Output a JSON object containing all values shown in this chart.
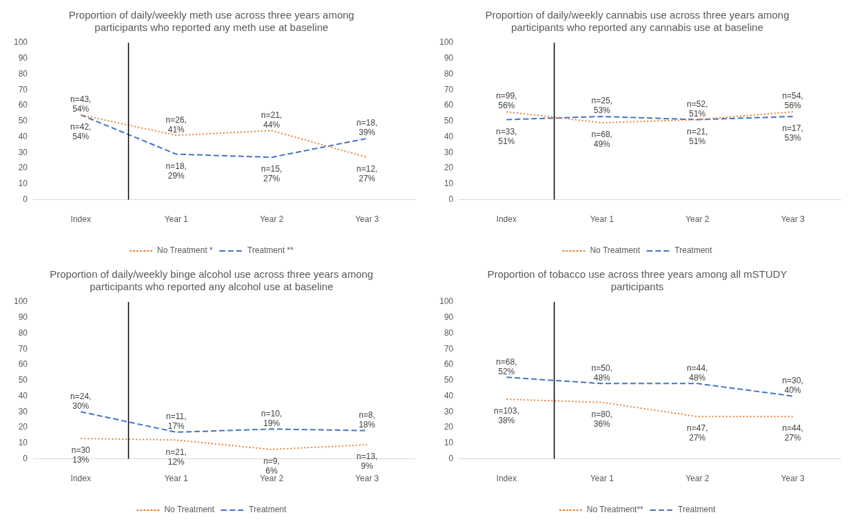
{
  "chart_data": [
    {
      "type": "line",
      "title": "Proportion of daily/weekly meth use across three years among participants who reported any meth use at baseline",
      "categories": [
        "Index",
        "Year 1",
        "Year 2",
        "Year 3"
      ],
      "ylim": [
        0,
        100
      ],
      "yticks": [
        0,
        10,
        20,
        30,
        40,
        50,
        60,
        70,
        80,
        90,
        100
      ],
      "grid": false,
      "legend": "bottom",
      "marker": "none",
      "series": [
        {
          "name": "Treatment **",
          "color": "#4472c4",
          "line_style": "dashed",
          "values": [
            54,
            29,
            27,
            39
          ],
          "value_labels": [
            "n=43, 54%",
            "n=18, 29%",
            "n=15, 27%",
            "n=18, 39%"
          ]
        },
        {
          "name": "No Treatment *",
          "color": "#ed7d31",
          "line_style": "dotted",
          "values": [
            54,
            41,
            44,
            27
          ],
          "value_labels": [
            "n=42, 54%",
            "n=26, 41%",
            "n=21, 44%",
            "n=12, 27%"
          ]
        }
      ]
    },
    {
      "type": "line",
      "title": "Proportion of daily/weekly cannabis use across three years among participants who reported any cannabis use at baseline",
      "categories": [
        "Index",
        "Year 1",
        "Year 2",
        "Year 3"
      ],
      "ylim": [
        0,
        100
      ],
      "yticks": [
        0,
        10,
        20,
        30,
        40,
        50,
        60,
        70,
        80,
        90,
        100
      ],
      "grid": false,
      "legend": "bottom",
      "marker": "none",
      "series": [
        {
          "name": "Treatment",
          "color": "#4472c4",
          "line_style": "dashed",
          "values": [
            51,
            53,
            51,
            53
          ],
          "value_labels": [
            "n=33, 51%",
            "n=25, 53%",
            "n=52, 51%",
            "n=17, 53%"
          ]
        },
        {
          "name": "No Treatment",
          "color": "#ed7d31",
          "line_style": "dotted",
          "values": [
            56,
            49,
            51,
            56
          ],
          "value_labels": [
            "n=99, 56%",
            "n=68, 49%",
            "n=21, 51%",
            "n=54, 56%"
          ]
        }
      ]
    },
    {
      "type": "line",
      "title": "Proportion of daily/weekly binge alcohol use across three years among participants who reported any alcohol use at baseline",
      "categories": [
        "Index",
        "Year 1",
        "Year 2",
        "Year 3"
      ],
      "ylim": [
        0,
        100
      ],
      "yticks": [
        0,
        10,
        20,
        30,
        40,
        50,
        60,
        70,
        80,
        90,
        100
      ],
      "grid": false,
      "legend": "bottom",
      "marker": "none",
      "series": [
        {
          "name": "Treatment",
          "color": "#4472c4",
          "line_style": "dashed",
          "values": [
            30,
            17,
            19,
            18
          ],
          "value_labels": [
            "n=24, 30%",
            "n=11, 17%",
            "n=10, 19%",
            "n=8, 18%"
          ]
        },
        {
          "name": "No Treatment",
          "color": "#ed7d31",
          "line_style": "dotted",
          "values": [
            13,
            12,
            6,
            9
          ],
          "value_labels": [
            "n=30 13%",
            "n=21, 12%",
            "n=9, 6%",
            "n=13, 9%"
          ]
        }
      ]
    },
    {
      "type": "line",
      "title": "Proportion of tobacco use across three years among all mSTUDY participants",
      "categories": [
        "Index",
        "Year 1",
        "Year 2",
        "Year 3"
      ],
      "ylim": [
        0,
        100
      ],
      "yticks": [
        0,
        10,
        20,
        30,
        40,
        50,
        60,
        70,
        80,
        90,
        100
      ],
      "grid": false,
      "legend": "bottom",
      "marker": "none",
      "series": [
        {
          "name": "Treatment",
          "color": "#4472c4",
          "line_style": "dashed",
          "values": [
            52,
            48,
            48,
            40
          ],
          "value_labels": [
            "n=68, 52%",
            "n=50, 48%",
            "n=44, 48%",
            "n=30, 40%"
          ]
        },
        {
          "name": "No Treatment**",
          "color": "#ed7d31",
          "line_style": "dotted",
          "values": [
            38,
            36,
            27,
            27
          ],
          "value_labels": [
            "n=103, 38%",
            "n=80, 36%",
            "n=47, 27%",
            "n=44, 27%"
          ]
        }
      ]
    }
  ]
}
